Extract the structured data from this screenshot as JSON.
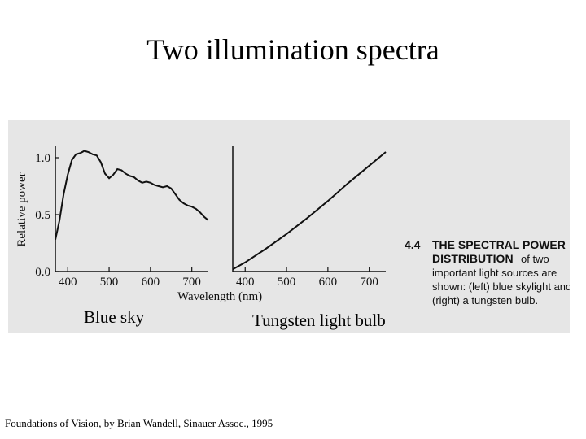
{
  "slide": {
    "title": "Two illumination spectra",
    "left_panel_label": "Blue sky",
    "right_panel_label": "Tungsten light bulb",
    "source": "Foundations of Vision, by Brian Wandell, Sinauer Assoc., 1995"
  },
  "figure": {
    "caption_number": "4.4",
    "caption_heading": [
      "THE SPECTRAL POWER",
      "DISTRIBUTION"
    ],
    "caption_body": [
      "of two",
      "important light sources are",
      "shown: (left) blue skylight and",
      "(right) a tungsten bulb."
    ]
  },
  "chart_data": [
    {
      "type": "line",
      "xlabel": "Wavelength (nm)",
      "ylabel": "Relative power",
      "xticks": [
        400,
        500,
        600,
        700
      ],
      "yticks": [
        "0.0",
        "0.5",
        "1.0"
      ],
      "xlim": [
        370,
        740
      ],
      "ylim": [
        0,
        1.1
      ],
      "series": [
        {
          "x": [
            370,
            380,
            390,
            400,
            410,
            420,
            430,
            440,
            450,
            460,
            470,
            480,
            490,
            500,
            510,
            520,
            530,
            540,
            550,
            560,
            570,
            580,
            590,
            600,
            610,
            620,
            630,
            640,
            650,
            660,
            670,
            680,
            690,
            700,
            710,
            720,
            730,
            740
          ],
          "y": [
            0.28,
            0.45,
            0.68,
            0.85,
            0.98,
            1.03,
            1.04,
            1.06,
            1.05,
            1.03,
            1.02,
            0.96,
            0.86,
            0.82,
            0.85,
            0.9,
            0.89,
            0.86,
            0.84,
            0.83,
            0.8,
            0.78,
            0.79,
            0.78,
            0.76,
            0.75,
            0.74,
            0.75,
            0.73,
            0.68,
            0.63,
            0.6,
            0.58,
            0.57,
            0.55,
            0.52,
            0.48,
            0.45
          ]
        }
      ]
    },
    {
      "type": "line",
      "xlabel": "Wavelength (nm)",
      "ylabel": "Relative power",
      "xticks": [
        400,
        500,
        600,
        700
      ],
      "xlim": [
        370,
        740
      ],
      "ylim": [
        0,
        1.1
      ],
      "series": [
        {
          "x": [
            370,
            400,
            450,
            500,
            550,
            600,
            650,
            700,
            740
          ],
          "y": [
            0.02,
            0.08,
            0.2,
            0.33,
            0.47,
            0.62,
            0.78,
            0.93,
            1.05
          ]
        }
      ]
    }
  ]
}
